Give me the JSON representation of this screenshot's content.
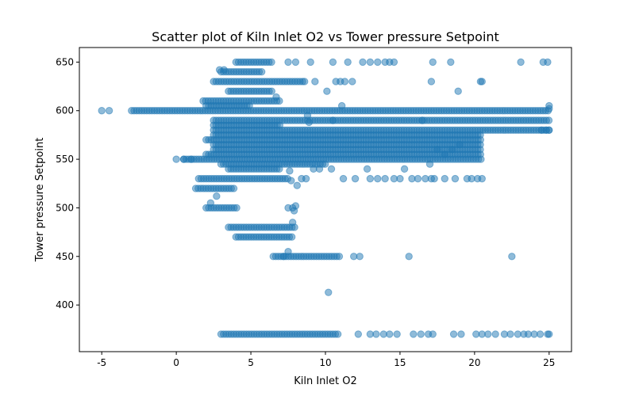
{
  "chart_data": {
    "type": "scatter",
    "title": "Scatter plot of Kiln Inlet O2 vs Tower pressure Setpoint",
    "xlabel": "Kiln Inlet O2",
    "ylabel": "Tower pressure Setpoint",
    "xlim": [
      -6.5,
      26.5
    ],
    "ylim": [
      352,
      665
    ],
    "xticks": [
      -5,
      0,
      5,
      10,
      15,
      20,
      25
    ],
    "yticks": [
      400,
      450,
      500,
      550,
      600,
      650
    ],
    "grid": false,
    "legend": "none",
    "marker_color": "#1f77b4",
    "marker_alpha": 0.5,
    "series": [
      {
        "bands": [
          {
            "y": 650,
            "x_min": 4.0,
            "x_max": 6.5
          },
          {
            "y": 640,
            "x_min": 3.0,
            "x_max": 5.8
          },
          {
            "y": 630,
            "x_min": 2.5,
            "x_max": 8.5
          },
          {
            "y": 620,
            "x_min": 3.5,
            "x_max": 6.5
          },
          {
            "y": 610,
            "x_min": 1.8,
            "x_max": 7.0
          },
          {
            "y": 605,
            "x_min": 2.0,
            "x_max": 5.0
          },
          {
            "y": 600,
            "x_min": -3.0,
            "x_max": 25.0
          },
          {
            "y": 590,
            "x_min": 2.5,
            "x_max": 25.0
          },
          {
            "y": 585,
            "x_min": 2.5,
            "x_max": 7.0
          },
          {
            "y": 580,
            "x_min": 2.5,
            "x_max": 25.0
          },
          {
            "y": 575,
            "x_min": 2.5,
            "x_max": 20.5
          },
          {
            "y": 570,
            "x_min": 2.0,
            "x_max": 20.5
          },
          {
            "y": 565,
            "x_min": 2.5,
            "x_max": 20.5
          },
          {
            "y": 560,
            "x_min": 2.5,
            "x_max": 20.5
          },
          {
            "y": 555,
            "x_min": 2.0,
            "x_max": 20.5
          },
          {
            "y": 550,
            "x_min": 0.5,
            "x_max": 20.5
          },
          {
            "y": 545,
            "x_min": 3.0,
            "x_max": 10.0
          },
          {
            "y": 540,
            "x_min": 3.5,
            "x_max": 7.0
          },
          {
            "y": 530,
            "x_min": 1.5,
            "x_max": 7.5
          },
          {
            "y": 520,
            "x_min": 1.3,
            "x_max": 4.0
          },
          {
            "y": 500,
            "x_min": 2.0,
            "x_max": 4.2
          },
          {
            "y": 480,
            "x_min": 3.5,
            "x_max": 8.0
          },
          {
            "y": 470,
            "x_min": 4.0,
            "x_max": 7.8
          },
          {
            "y": 450,
            "x_min": 6.5,
            "x_max": 11.0
          },
          {
            "y": 370,
            "x_min": 3.0,
            "x_max": 11.0
          }
        ],
        "points": [
          [
            -5.0,
            600
          ],
          [
            -4.5,
            600
          ],
          [
            0.0,
            550
          ],
          [
            0.5,
            550
          ],
          [
            1.0,
            550
          ],
          [
            10.2,
            413
          ],
          [
            7.5,
            455
          ],
          [
            7.2,
            450
          ],
          [
            7.8,
            485
          ],
          [
            7.9,
            497
          ],
          [
            8.0,
            502
          ],
          [
            7.5,
            500
          ],
          [
            7.8,
            500
          ],
          [
            2.7,
            512
          ],
          [
            2.3,
            505
          ],
          [
            7.5,
            650
          ],
          [
            8.0,
            650
          ],
          [
            9.0,
            650
          ],
          [
            10.5,
            650
          ],
          [
            11.5,
            650
          ],
          [
            12.5,
            650
          ],
          [
            13.0,
            650
          ],
          [
            13.5,
            650
          ],
          [
            14.0,
            650
          ],
          [
            14.3,
            650
          ],
          [
            14.6,
            650
          ],
          [
            17.2,
            650
          ],
          [
            18.4,
            650
          ],
          [
            23.1,
            650
          ],
          [
            24.6,
            650
          ],
          [
            24.9,
            650
          ],
          [
            2.9,
            642
          ],
          [
            3.2,
            642
          ],
          [
            8.6,
            630
          ],
          [
            9.3,
            630
          ],
          [
            10.7,
            630
          ],
          [
            11.0,
            630
          ],
          [
            11.3,
            630
          ],
          [
            11.8,
            630
          ],
          [
            17.1,
            630
          ],
          [
            20.4,
            630
          ],
          [
            20.5,
            630
          ],
          [
            10.1,
            620
          ],
          [
            18.9,
            620
          ],
          [
            6.7,
            614
          ],
          [
            11.1,
            605
          ],
          [
            8.8,
            595
          ],
          [
            8.9,
            588
          ],
          [
            10.5,
            590
          ],
          [
            16.5,
            590
          ],
          [
            7.6,
            538
          ],
          [
            7.7,
            528
          ],
          [
            8.1,
            523
          ],
          [
            8.4,
            530
          ],
          [
            8.7,
            530
          ],
          [
            9.2,
            540
          ],
          [
            9.6,
            540
          ],
          [
            10.4,
            540
          ],
          [
            11.2,
            530
          ],
          [
            12.0,
            530
          ],
          [
            12.8,
            540
          ],
          [
            13.0,
            530
          ],
          [
            13.5,
            530
          ],
          [
            14.0,
            530
          ],
          [
            14.6,
            530
          ],
          [
            15.0,
            530
          ],
          [
            15.3,
            540
          ],
          [
            15.8,
            530
          ],
          [
            16.2,
            530
          ],
          [
            16.7,
            530
          ],
          [
            17.1,
            530
          ],
          [
            17.3,
            530
          ],
          [
            18.0,
            530
          ],
          [
            18.7,
            530
          ],
          [
            19.5,
            530
          ],
          [
            19.8,
            530
          ],
          [
            20.2,
            530
          ],
          [
            20.5,
            530
          ],
          [
            17.0,
            545
          ],
          [
            17.5,
            560
          ],
          [
            18.0,
            555
          ],
          [
            18.5,
            560
          ],
          [
            19.0,
            565
          ],
          [
            11.9,
            450
          ],
          [
            12.3,
            450
          ],
          [
            15.6,
            450
          ],
          [
            22.5,
            450
          ],
          [
            12.2,
            370
          ],
          [
            13.0,
            370
          ],
          [
            13.4,
            370
          ],
          [
            13.9,
            370
          ],
          [
            14.3,
            370
          ],
          [
            14.8,
            370
          ],
          [
            15.9,
            370
          ],
          [
            16.4,
            370
          ],
          [
            16.9,
            370
          ],
          [
            17.2,
            370
          ],
          [
            18.6,
            370
          ],
          [
            19.1,
            370
          ],
          [
            20.1,
            370
          ],
          [
            20.5,
            370
          ],
          [
            20.9,
            370
          ],
          [
            21.4,
            370
          ],
          [
            22.0,
            370
          ],
          [
            22.4,
            370
          ],
          [
            22.9,
            370
          ],
          [
            23.3,
            370
          ],
          [
            23.6,
            370
          ],
          [
            24.0,
            370
          ],
          [
            24.4,
            370
          ],
          [
            24.9,
            370
          ],
          [
            25.0,
            370
          ],
          [
            25.0,
            605
          ],
          [
            25.0,
            602
          ],
          [
            25.0,
            580
          ],
          [
            24.8,
            580
          ],
          [
            24.5,
            580
          ]
        ]
      }
    ]
  }
}
